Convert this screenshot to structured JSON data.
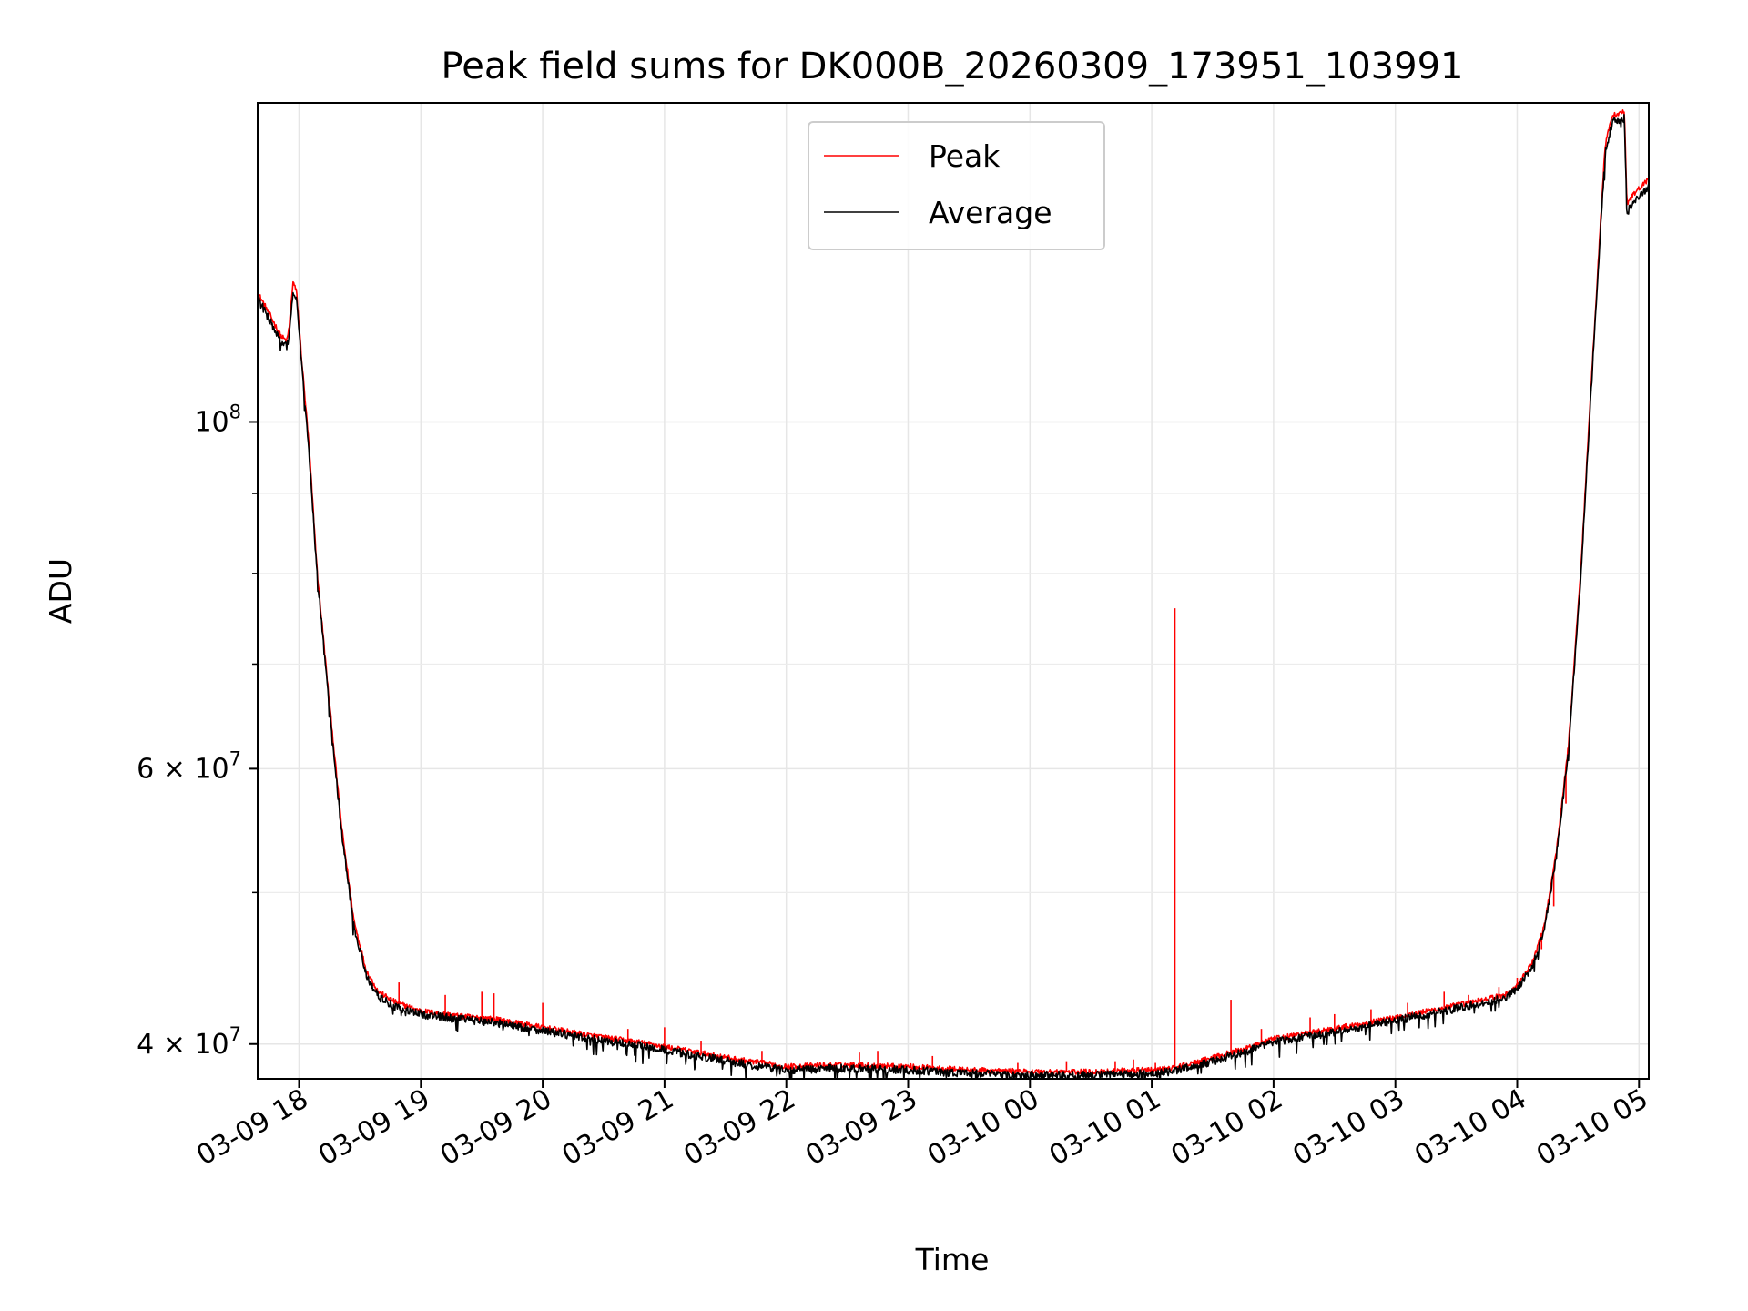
{
  "chart_data": {
    "type": "line",
    "title": "Peak field sums for DK000B_20260309_173951_103991",
    "xlabel": "Time",
    "ylabel": "ADU",
    "yscale": "log",
    "grid": true,
    "legend_position": "upper center",
    "x_unit": "hours since 03-09 00:00",
    "xlim": [
      17.66,
      29.08
    ],
    "ylim": [
      38000000,
      160000000
    ],
    "x_ticks": [
      {
        "value": 18,
        "label": "03-09 18"
      },
      {
        "value": 19,
        "label": "03-09 19"
      },
      {
        "value": 20,
        "label": "03-09 20"
      },
      {
        "value": 21,
        "label": "03-09 21"
      },
      {
        "value": 22,
        "label": "03-09 22"
      },
      {
        "value": 23,
        "label": "03-09 23"
      },
      {
        "value": 24,
        "label": "03-10 00"
      },
      {
        "value": 25,
        "label": "03-10 01"
      },
      {
        "value": 26,
        "label": "03-10 02"
      },
      {
        "value": 27,
        "label": "03-10 03"
      },
      {
        "value": 28,
        "label": "03-10 04"
      },
      {
        "value": 29,
        "label": "03-10 05"
      }
    ],
    "y_major_ticks": [
      {
        "value": 40000000,
        "base": "4",
        "mult": "×",
        "ten": "10",
        "exp": "7"
      },
      {
        "value": 60000000,
        "base": "6",
        "mult": "×",
        "ten": "10",
        "exp": "7"
      },
      {
        "value": 100000000,
        "base": "",
        "mult": "",
        "ten": "10",
        "exp": "8"
      }
    ],
    "y_minor_ticks": [
      50000000,
      70000000,
      80000000,
      90000000
    ],
    "series": [
      {
        "name": "Peak",
        "color": "#ff0000",
        "points": [
          [
            17.66,
            121000000
          ],
          [
            17.75,
            117500000
          ],
          [
            17.85,
            113500000
          ],
          [
            17.9,
            112600000
          ],
          [
            17.92,
            115200000
          ],
          [
            17.95,
            123000000
          ],
          [
            17.98,
            121000000
          ],
          [
            18.02,
            110000000
          ],
          [
            18.08,
            97000000
          ],
          [
            18.15,
            80000000
          ],
          [
            18.25,
            66000000
          ],
          [
            18.35,
            55000000
          ],
          [
            18.45,
            48000000
          ],
          [
            18.55,
            44600000
          ],
          [
            18.65,
            43200000
          ],
          [
            18.8,
            42500000
          ],
          [
            19.0,
            42000000
          ],
          [
            19.3,
            41700000
          ],
          [
            19.6,
            41500000
          ],
          [
            20.0,
            41000000
          ],
          [
            20.4,
            40500000
          ],
          [
            20.8,
            40100000
          ],
          [
            21.2,
            39600000
          ],
          [
            21.6,
            39100000
          ],
          [
            22.0,
            38700000
          ],
          [
            22.5,
            38800000
          ],
          [
            23.0,
            38700000
          ],
          [
            23.5,
            38500000
          ],
          [
            24.0,
            38400000
          ],
          [
            24.5,
            38400000
          ],
          [
            25.0,
            38500000
          ],
          [
            25.17,
            38600000
          ],
          [
            25.4,
            39000000
          ],
          [
            25.7,
            39600000
          ],
          [
            26.0,
            40300000
          ],
          [
            26.4,
            40800000
          ],
          [
            26.8,
            41300000
          ],
          [
            27.2,
            41900000
          ],
          [
            27.6,
            42500000
          ],
          [
            27.9,
            43000000
          ],
          [
            28.0,
            43600000
          ],
          [
            28.12,
            45000000
          ],
          [
            28.22,
            47500000
          ],
          [
            28.32,
            53000000
          ],
          [
            28.42,
            62000000
          ],
          [
            28.52,
            80000000
          ],
          [
            28.62,
            110000000
          ],
          [
            28.72,
            150000000
          ],
          [
            28.78,
            157000000
          ],
          [
            28.88,
            158000000
          ],
          [
            28.9,
            138000000
          ],
          [
            28.96,
            140000000
          ],
          [
            29.08,
            143000000
          ]
        ],
        "spikes": [
          [
            18.82,
            43800000
          ],
          [
            19.2,
            43000000
          ],
          [
            19.5,
            43200000
          ],
          [
            19.6,
            43100000
          ],
          [
            20.0,
            42500000
          ],
          [
            20.7,
            40900000
          ],
          [
            21.0,
            41000000
          ],
          [
            21.3,
            40200000
          ],
          [
            21.8,
            39600000
          ],
          [
            22.6,
            39500000
          ],
          [
            22.75,
            39600000
          ],
          [
            23.2,
            39300000
          ],
          [
            23.9,
            38900000
          ],
          [
            24.3,
            39000000
          ],
          [
            24.7,
            39000000
          ],
          [
            24.85,
            39100000
          ],
          [
            25.03,
            38900000
          ],
          [
            25.19,
            76000000
          ],
          [
            25.65,
            42700000
          ],
          [
            25.9,
            40900000
          ],
          [
            26.3,
            41600000
          ],
          [
            26.5,
            41800000
          ],
          [
            26.8,
            42100000
          ],
          [
            27.1,
            42500000
          ],
          [
            27.4,
            43200000
          ],
          [
            27.6,
            43000000
          ],
          [
            27.85,
            43500000
          ],
          [
            28.0,
            44100000
          ],
          [
            28.2,
            46000000
          ],
          [
            28.3,
            49000000
          ],
          [
            28.4,
            57000000
          ]
        ]
      },
      {
        "name": "Average",
        "color": "#000000",
        "points": [
          [
            17.66,
            120000000
          ],
          [
            17.75,
            116500000
          ],
          [
            17.85,
            112500000
          ],
          [
            17.9,
            111700000
          ],
          [
            17.92,
            114000000
          ],
          [
            17.95,
            121000000
          ],
          [
            17.98,
            119500000
          ],
          [
            18.02,
            109000000
          ],
          [
            18.08,
            96000000
          ],
          [
            18.15,
            79500000
          ],
          [
            18.25,
            65500000
          ],
          [
            18.35,
            54500000
          ],
          [
            18.45,
            47600000
          ],
          [
            18.55,
            44300000
          ],
          [
            18.65,
            42900000
          ],
          [
            18.8,
            42200000
          ],
          [
            19.0,
            41800000
          ],
          [
            19.3,
            41500000
          ],
          [
            19.6,
            41300000
          ],
          [
            20.0,
            40800000
          ],
          [
            20.4,
            40300000
          ],
          [
            20.8,
            39900000
          ],
          [
            21.2,
            39400000
          ],
          [
            21.6,
            38900000
          ],
          [
            22.0,
            38500000
          ],
          [
            22.5,
            38600000
          ],
          [
            23.0,
            38500000
          ],
          [
            23.5,
            38300000
          ],
          [
            24.0,
            38200000
          ],
          [
            24.5,
            38200000
          ],
          [
            25.0,
            38300000
          ],
          [
            25.17,
            38400000
          ],
          [
            25.4,
            38800000
          ],
          [
            25.7,
            39400000
          ],
          [
            26.0,
            40100000
          ],
          [
            26.4,
            40600000
          ],
          [
            26.8,
            41100000
          ],
          [
            27.2,
            41700000
          ],
          [
            27.6,
            42300000
          ],
          [
            27.9,
            42800000
          ],
          [
            28.0,
            43400000
          ],
          [
            28.12,
            44800000
          ],
          [
            28.22,
            47200000
          ],
          [
            28.32,
            52600000
          ],
          [
            28.42,
            61500000
          ],
          [
            28.52,
            79000000
          ],
          [
            28.62,
            109000000
          ],
          [
            28.72,
            148000000
          ],
          [
            28.78,
            155500000
          ],
          [
            28.88,
            156500000
          ],
          [
            28.9,
            136000000
          ],
          [
            28.96,
            138500000
          ],
          [
            29.08,
            141500000
          ]
        ]
      }
    ]
  }
}
